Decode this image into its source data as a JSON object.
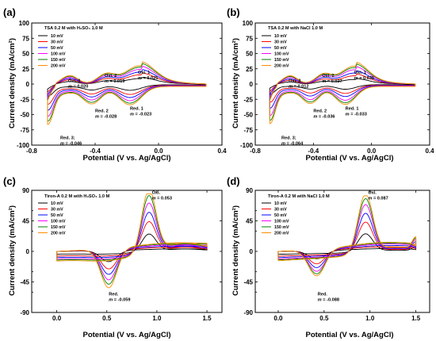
{
  "figure": {
    "panels": [
      {
        "id": "a",
        "letter": "(a)",
        "title": "TSA 0.2 M with H₂SO₄ 1.0 M",
        "ylabel": "Current density (mA/cm²)",
        "xlabel": "Potential (V vs. Ag/AgCl)",
        "annotations": [
          {
            "label": "Oxi. 1",
            "m_label": "m",
            "m_value": "= 0.025",
            "x": -0.13,
            "y": 17
          },
          {
            "label": "Oxi. 2",
            "m_label": "m",
            "m_value": "= 0.019",
            "x": -0.34,
            "y": 12
          },
          {
            "label": "Oxi. 3",
            "m_label": "m",
            "m_value": "= 0.020",
            "x": -0.57,
            "y": 3
          },
          {
            "label": "Red. 1",
            "m_label": "m",
            "m_value": "= -0.023",
            "x": -0.18,
            "y": -42
          },
          {
            "label": "Red. 2",
            "m_label": "m",
            "m_value": "= -0.028",
            "x": -0.4,
            "y": -46
          },
          {
            "label": "Red. 3;",
            "m_label": "m",
            "m_value": "= -0.046",
            "x": -0.62,
            "y": -90
          }
        ]
      },
      {
        "id": "b",
        "letter": "(b)",
        "title": "TSA 0.2 M with NaCl 1.0 M",
        "ylabel": "Current density (mA/cm²)",
        "xlabel": "Potential (V vs. Ag/AgCl)",
        "annotations": [
          {
            "label": "Oxi. 1",
            "m_label": "m",
            "m_value": "= 0.035",
            "x": -0.12,
            "y": 17
          },
          {
            "label": "Oxi. 2",
            "m_label": "m",
            "m_value": "= 0.027",
            "x": -0.34,
            "y": 12
          },
          {
            "label": "Oxi. 3",
            "m_label": "m",
            "m_value": "= 0.012",
            "x": -0.57,
            "y": 3
          },
          {
            "label": "Red. 1",
            "m_label": "m",
            "m_value": "= -0.033",
            "x": -0.18,
            "y": -42
          },
          {
            "label": "Red. 2",
            "m_label": "m",
            "m_value": "= -0.036",
            "x": -0.4,
            "y": -46
          },
          {
            "label": "Red. 3;",
            "m_label": "m",
            "m_value": "= -0.064",
            "x": -0.62,
            "y": -90
          }
        ]
      },
      {
        "id": "c",
        "letter": "(c)",
        "title": "Tiron-A 0.2 M with H₂SO₄ 1.0 M",
        "ylabel": "Current density (mA/cm²)",
        "xlabel": "Potential (V vs. Ag/AgCl)",
        "annotations": [
          {
            "label": "Oxi.",
            "m_label": "m",
            "m_value": "= 0.053",
            "x": 0.95,
            "y": 85
          },
          {
            "label": "Red.",
            "m_label": "m",
            "m_value": "= -0.059",
            "x": 0.52,
            "y": -65
          }
        ]
      },
      {
        "id": "d",
        "letter": "(d)",
        "title": "Tiron-A 0.2 M with NaCl 1.0 M",
        "ylabel": "Current density (mA/cm²)",
        "xlabel": "Potential (V vs. Ag/AgCl)",
        "annotations": [
          {
            "label": "Oxi.",
            "m_label": "m",
            "m_value": "= 0.087",
            "x": 0.98,
            "y": 85
          },
          {
            "label": "Red.",
            "m_label": "m",
            "m_value": "= -0.088",
            "x": 0.43,
            "y": -65
          }
        ]
      }
    ]
  },
  "chart_data": [
    {
      "type": "line",
      "panel": "a",
      "title": "TSA 0.2 M with H₂SO₄ 1.0 M",
      "xlabel": "Potential (V vs. Ag/AgCl)",
      "ylabel": "Current density (mA/cm²)",
      "xlim": [
        -0.8,
        0.4
      ],
      "ylim": [
        -100,
        100
      ],
      "xticks": [
        -0.8,
        -0.4,
        0.0,
        0.4
      ],
      "xtick_labels": [
        "-0.8",
        "-0.4",
        "0.0",
        "0.4"
      ],
      "yticks": [
        -100,
        -75,
        -50,
        -25,
        0,
        25,
        50,
        75,
        100
      ],
      "ytick_labels": [
        "-100",
        "-75",
        "-50",
        "-25",
        "0",
        "25",
        "50",
        "75",
        "100"
      ],
      "legend_position": "top-left",
      "shape": "tsa",
      "series": [
        {
          "name": "10 mV",
          "color": "#000000",
          "scale": 0.3
        },
        {
          "name": "30 mV",
          "color": "#ff0000",
          "scale": 0.5
        },
        {
          "name": "50 mV",
          "color": "#0000ff",
          "scale": 0.65
        },
        {
          "name": "100 mV",
          "color": "#ff00ff",
          "scale": 0.8
        },
        {
          "name": "150 mV",
          "color": "#008000",
          "scale": 0.92
        },
        {
          "name": "200 mV",
          "color": "#ff8c00",
          "scale": 1.0
        }
      ]
    },
    {
      "type": "line",
      "panel": "b",
      "title": "TSA 0.2 M with NaCl 1.0 M",
      "xlabel": "Potential (V vs. Ag/AgCl)",
      "ylabel": "Current density (mA/cm²)",
      "xlim": [
        -0.8,
        0.4
      ],
      "ylim": [
        -100,
        100
      ],
      "xticks": [
        -0.8,
        -0.4,
        0.0,
        0.4
      ],
      "xtick_labels": [
        "-0.8",
        "-0.4",
        "0.0",
        "0.4"
      ],
      "yticks": [
        -100,
        -75,
        -50,
        -25,
        0,
        25,
        50,
        75,
        100
      ],
      "ytick_labels": [
        "-100",
        "-75",
        "-50",
        "-25",
        "0",
        "25",
        "50",
        "75",
        "100"
      ],
      "legend_position": "top-left",
      "shape": "tsa",
      "series": [
        {
          "name": "10 mV",
          "color": "#000000",
          "scale": 0.25
        },
        {
          "name": "30 mV",
          "color": "#ff0000",
          "scale": 0.45
        },
        {
          "name": "50 mV",
          "color": "#0000ff",
          "scale": 0.6
        },
        {
          "name": "100 mV",
          "color": "#ff00ff",
          "scale": 0.78
        },
        {
          "name": "150 mV",
          "color": "#008000",
          "scale": 0.9
        },
        {
          "name": "200 mV",
          "color": "#ff8c00",
          "scale": 0.98
        }
      ]
    },
    {
      "type": "line",
      "panel": "c",
      "title": "Tiron-A 0.2 M with H₂SO₄ 1.0 M",
      "xlabel": "Potential (V vs. Ag/AgCl)",
      "ylabel": "Current density (mA/cm²)",
      "xlim": [
        -0.25,
        1.65
      ],
      "ylim": [
        -90,
        90
      ],
      "xticks": [
        0.0,
        0.5,
        1.0,
        1.5
      ],
      "xtick_labels": [
        "0.0",
        "0.5",
        "1.0",
        "1.5"
      ],
      "yticks": [
        -90,
        -45,
        0,
        45,
        90
      ],
      "ytick_labels": [
        "-90",
        "-45",
        "0",
        "45",
        "90"
      ],
      "extra_yticks": [
        -60,
        -30,
        30,
        60
      ],
      "legend_position": "top-left",
      "shape": "tiron_h2so4",
      "series": [
        {
          "name": "10 mV",
          "color": "#000000",
          "scale": 0.28
        },
        {
          "name": "30 mV",
          "color": "#ff0000",
          "scale": 0.48
        },
        {
          "name": "50 mV",
          "color": "#0000ff",
          "scale": 0.63
        },
        {
          "name": "100 mV",
          "color": "#ff00ff",
          "scale": 0.78
        },
        {
          "name": "150 mV",
          "color": "#008000",
          "scale": 0.9
        },
        {
          "name": "200 mV",
          "color": "#ff8c00",
          "scale": 1.0
        }
      ]
    },
    {
      "type": "line",
      "panel": "d",
      "title": "Tiron-A 0.2 M with NaCl 1.0 M",
      "xlabel": "Potential (V vs. Ag/AgCl)",
      "ylabel": "Current density (mA/cm²)",
      "xlim": [
        -0.25,
        1.65
      ],
      "ylim": [
        -90,
        90
      ],
      "xticks": [
        0.0,
        0.5,
        1.0,
        1.5
      ],
      "xtick_labels": [
        "0.0",
        "0.5",
        "1.0",
        "1.5"
      ],
      "yticks": [
        -90,
        -45,
        0,
        45,
        90
      ],
      "ytick_labels": [
        "-90",
        "-45",
        "0",
        "45",
        "90"
      ],
      "extra_yticks": [
        -60,
        -30,
        30,
        60
      ],
      "legend_position": "top-left",
      "shape": "tiron_nacl",
      "series": [
        {
          "name": "10 mV",
          "color": "#000000",
          "scale": 0.3
        },
        {
          "name": "30 mV",
          "color": "#ff0000",
          "scale": 0.5
        },
        {
          "name": "50 mV",
          "color": "#0000ff",
          "scale": 0.65
        },
        {
          "name": "100 mV",
          "color": "#ff00ff",
          "scale": 0.8
        },
        {
          "name": "150 mV",
          "color": "#008000",
          "scale": 0.9
        },
        {
          "name": "200 mV",
          "color": "#ff8c00",
          "scale": 0.98
        }
      ]
    }
  ]
}
